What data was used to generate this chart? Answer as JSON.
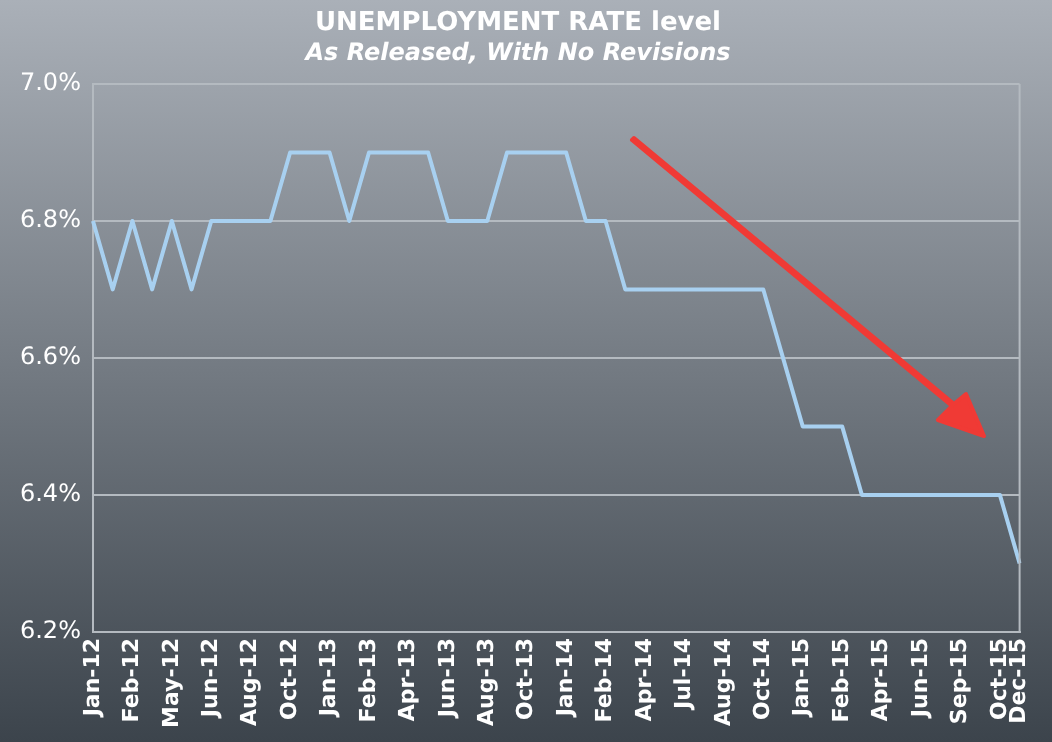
{
  "chart_data": {
    "type": "line",
    "title": "UNEMPLOYMENT RATE level",
    "subtitle": "As Released, With No Revisions",
    "categories": [
      "Jan-12",
      null,
      "Feb-12",
      null,
      "May-12",
      null,
      "Jun-12",
      null,
      "Aug-12",
      null,
      "Oct-12",
      null,
      "Jan-13",
      null,
      "Feb-13",
      null,
      "Apr-13",
      null,
      "Jun-13",
      null,
      "Aug-13",
      null,
      "Oct-13",
      null,
      "Jan-14",
      null,
      "Feb-14",
      null,
      "Apr-14",
      null,
      "Jul-14",
      null,
      "Aug-14",
      null,
      "Oct-14",
      null,
      "Jan-15",
      null,
      "Feb-15",
      null,
      "Apr-15",
      null,
      "Jun-15",
      null,
      "Sep-15",
      null,
      "Oct-15",
      "Dec-15"
    ],
    "series": [
      {
        "color": "#a8d0f0",
        "values": [
          6.8,
          6.7,
          6.8,
          6.7,
          6.8,
          6.7,
          6.8,
          6.8,
          6.8,
          6.8,
          6.9,
          6.9,
          6.9,
          6.8,
          6.9,
          6.9,
          6.9,
          6.9,
          6.8,
          6.8,
          6.8,
          6.9,
          6.9,
          6.9,
          6.9,
          6.8,
          6.8,
          6.7,
          6.7,
          6.7,
          6.7,
          6.7,
          6.7,
          6.7,
          6.7,
          6.6,
          6.5,
          6.5,
          6.5,
          6.4,
          6.4,
          6.4,
          6.4,
          6.4,
          6.4,
          6.4,
          6.4,
          6.3
        ]
      }
    ],
    "ylim": [
      6.2,
      7.0
    ],
    "yticks": [
      {
        "value": 6.2,
        "label": "6.2%"
      },
      {
        "value": 6.4,
        "label": "6.4%"
      },
      {
        "value": 6.6,
        "label": "6.6%"
      },
      {
        "value": 6.8,
        "label": "6.8%"
      },
      {
        "value": 7.0,
        "label": "7.0%"
      }
    ],
    "grid": "y",
    "legend": false,
    "marker": "none",
    "line_style": "solid"
  }
}
